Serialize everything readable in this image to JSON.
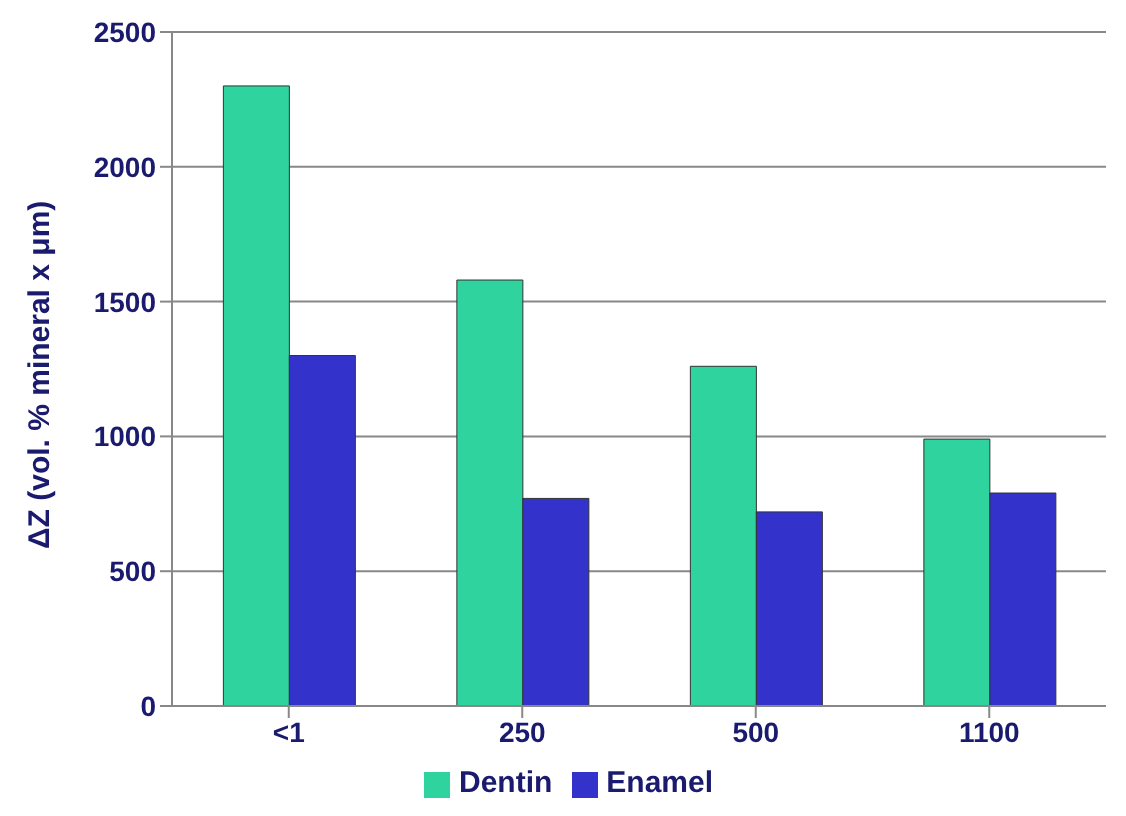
{
  "chart_data": {
    "type": "bar",
    "ylabel": "ΔZ (vol. % mineral x μm)",
    "categories": [
      "<1",
      "250",
      "500",
      "1100"
    ],
    "series": [
      {
        "name": "Dentin",
        "color": "#2ed39e",
        "values": [
          2300,
          1580,
          1260,
          990
        ]
      },
      {
        "name": "Enamel",
        "color": "#3333cc",
        "values": [
          1300,
          770,
          720,
          790
        ]
      }
    ],
    "ylim": [
      0,
      2500
    ],
    "yticks": [
      0,
      500,
      1000,
      1500,
      2000,
      2500
    ],
    "grid": "y",
    "legend": "bottom"
  }
}
